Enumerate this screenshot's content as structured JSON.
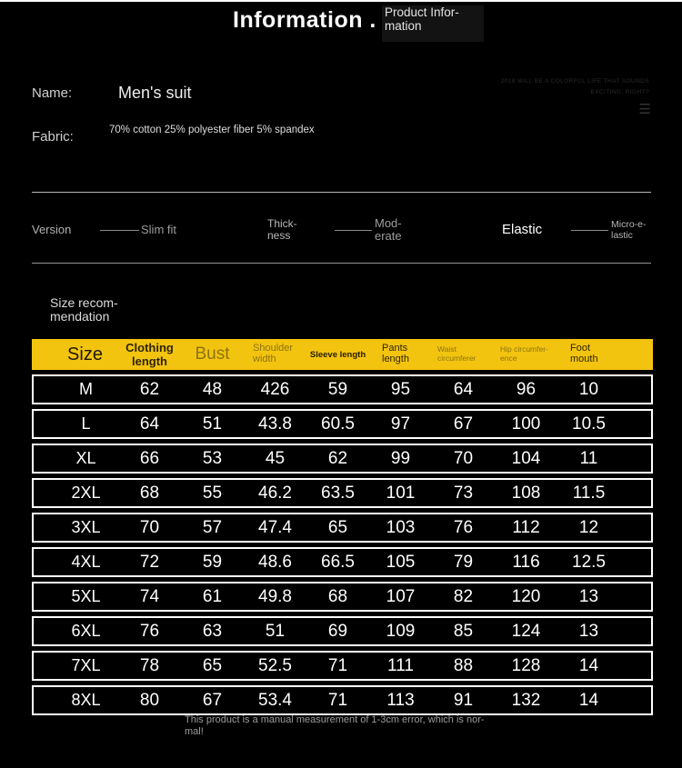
{
  "banner": {
    "title": "Information .",
    "subtitle_line1": "Product Infor-",
    "subtitle_line2": "mation"
  },
  "watermark": {
    "line1": "2018 WILL BE A COLORFUL LIFE THAT SOUNDS",
    "line2": "EXCITING, RIGHT?"
  },
  "icons": {
    "menu_icon": "☰"
  },
  "product": {
    "name_label": "Name:",
    "name_value": "Men's suit",
    "fabric_label": "Fabric:",
    "fabric_value": "70% cotton 25% polyester fiber 5% spandex"
  },
  "features": {
    "version_label": "Version",
    "fit_value": "Slim fit",
    "thickness_line1": "Thick-",
    "thickness_line2": "ness",
    "moderate_line1": "Mod-",
    "moderate_line2": "erate",
    "elastic_value": "Elastic",
    "micro_elastic_line1": "Micro-e-",
    "micro_elastic_line2": "lastic"
  },
  "size_section": {
    "heading_line1": "Size recom-",
    "heading_line2": "mendation"
  },
  "size_table": {
    "header_color": "#F3C40F",
    "columns": [
      {
        "lines": [
          "Size"
        ],
        "style": "xl-dark"
      },
      {
        "lines": [
          "Clothing length"
        ],
        "style": "md-dark"
      },
      {
        "lines": [
          "Bust"
        ],
        "style": "lg-muted"
      },
      {
        "lines": [
          "Shoulder",
          "width"
        ],
        "style": "sm-muted"
      },
      {
        "lines": [
          "Sleeve length"
        ],
        "style": "xs-dark"
      },
      {
        "lines": [
          "Pants",
          "length"
        ],
        "style": "sm-dark"
      },
      {
        "lines": [
          "Waist circumferer"
        ],
        "style": "xxs-muted"
      },
      {
        "lines": [
          "Hip circumfer-",
          "ence"
        ],
        "style": "xxs-muted"
      },
      {
        "lines": [
          "Foot",
          "mouth"
        ],
        "style": "sm-dark"
      }
    ],
    "rows": [
      [
        "M",
        "62",
        "48",
        "426",
        "59",
        "95",
        "64",
        "96",
        "10"
      ],
      [
        "L",
        "64",
        "51",
        "43.8",
        "60.5",
        "97",
        "67",
        "100",
        "10.5"
      ],
      [
        "XL",
        "66",
        "53",
        "45",
        "62",
        "99",
        "70",
        "104",
        "11"
      ],
      [
        "2XL",
        "68",
        "55",
        "46.2",
        "63.5",
        "101",
        "73",
        "108",
        "11.5"
      ],
      [
        "3XL",
        "70",
        "57",
        "47.4",
        "65",
        "103",
        "76",
        "112",
        "12"
      ],
      [
        "4XL",
        "72",
        "59",
        "48.6",
        "66.5",
        "105",
        "79",
        "116",
        "12.5"
      ],
      [
        "5XL",
        "74",
        "61",
        "49.8",
        "68",
        "107",
        "82",
        "120",
        "13"
      ],
      [
        "6XL",
        "76",
        "63",
        "51",
        "69",
        "109",
        "85",
        "124",
        "13"
      ],
      [
        "7XL",
        "78",
        "65",
        "52.5",
        "71",
        "111",
        "88",
        "128",
        "14"
      ],
      [
        "8XL",
        "80",
        "67",
        "53.4",
        "71",
        "113",
        "91",
        "132",
        "14"
      ]
    ]
  },
  "footer": {
    "note_line1": "This product is a manual measurement of 1-3cm error, which is nor-",
    "note_line2": "mal!"
  }
}
